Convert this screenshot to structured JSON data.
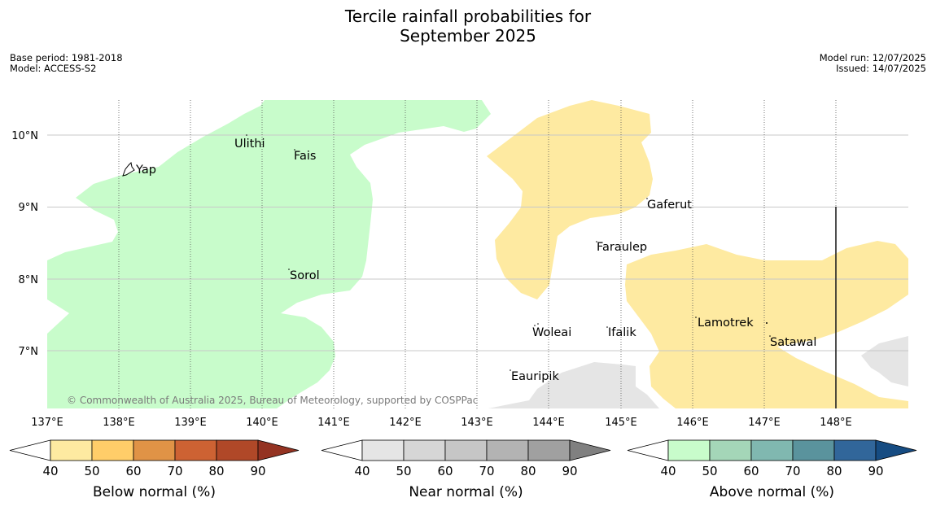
{
  "title": {
    "line1": "Tercile rainfall probabilities for",
    "line2": "September 2025"
  },
  "meta_left": {
    "base_period": "Base period: 1981-2018",
    "model": "Model: ACCESS-S2"
  },
  "meta_right": {
    "model_run": "Model run: 12/07/2025",
    "issued": "Issued: 14/07/2025"
  },
  "map": {
    "lat_labels": [
      "10°N",
      "9°N",
      "8°N",
      "7°N"
    ],
    "lon_labels": [
      "137°E",
      "138°E",
      "139°E",
      "140°E",
      "141°E",
      "142°E",
      "143°E",
      "144°E",
      "145°E",
      "146°E",
      "147°E",
      "148°E"
    ],
    "places": {
      "yap": "Yap",
      "ulithi": "Ulithi",
      "fais": "Fais",
      "sorol": "Sorol",
      "gaferut": "Gaferut",
      "faraulep": "Faraulep",
      "woleai": "Woleai",
      "ifalik": "Ifalik",
      "eauripik": "Eauripik",
      "lamotrek": "Lamotrek",
      "satawal": "Satawal"
    },
    "copyright": "© Commonwealth of Australia 2025, Bureau of Meteorology, supported by COSPPac",
    "colors": {
      "near_normal_region": "#e5e5e5",
      "below_normal_region": "#feeaa1",
      "above_normal_region": "#c8fccb"
    }
  },
  "legends": {
    "below": {
      "label": "Below normal (%)",
      "ticks": [
        "40",
        "50",
        "60",
        "70",
        "80",
        "90"
      ],
      "colors": [
        "#feeaa1",
        "#ffcd69",
        "#e09346",
        "#cd6233",
        "#b04828",
        "#943322"
      ]
    },
    "near": {
      "label": "Near normal (%)",
      "ticks": [
        "40",
        "50",
        "60",
        "70",
        "80",
        "90"
      ],
      "colors": [
        "#e5e5e5",
        "#d6d6d6",
        "#c6c6c6",
        "#b3b3b3",
        "#a0a0a0",
        "#808080"
      ]
    },
    "above": {
      "label": "Above normal (%)",
      "ticks": [
        "40",
        "50",
        "60",
        "70",
        "80",
        "90"
      ],
      "colors": [
        "#c8fccb",
        "#a4d6b8",
        "#80b8b0",
        "#5a939d",
        "#31669a",
        "#164c82"
      ]
    }
  }
}
